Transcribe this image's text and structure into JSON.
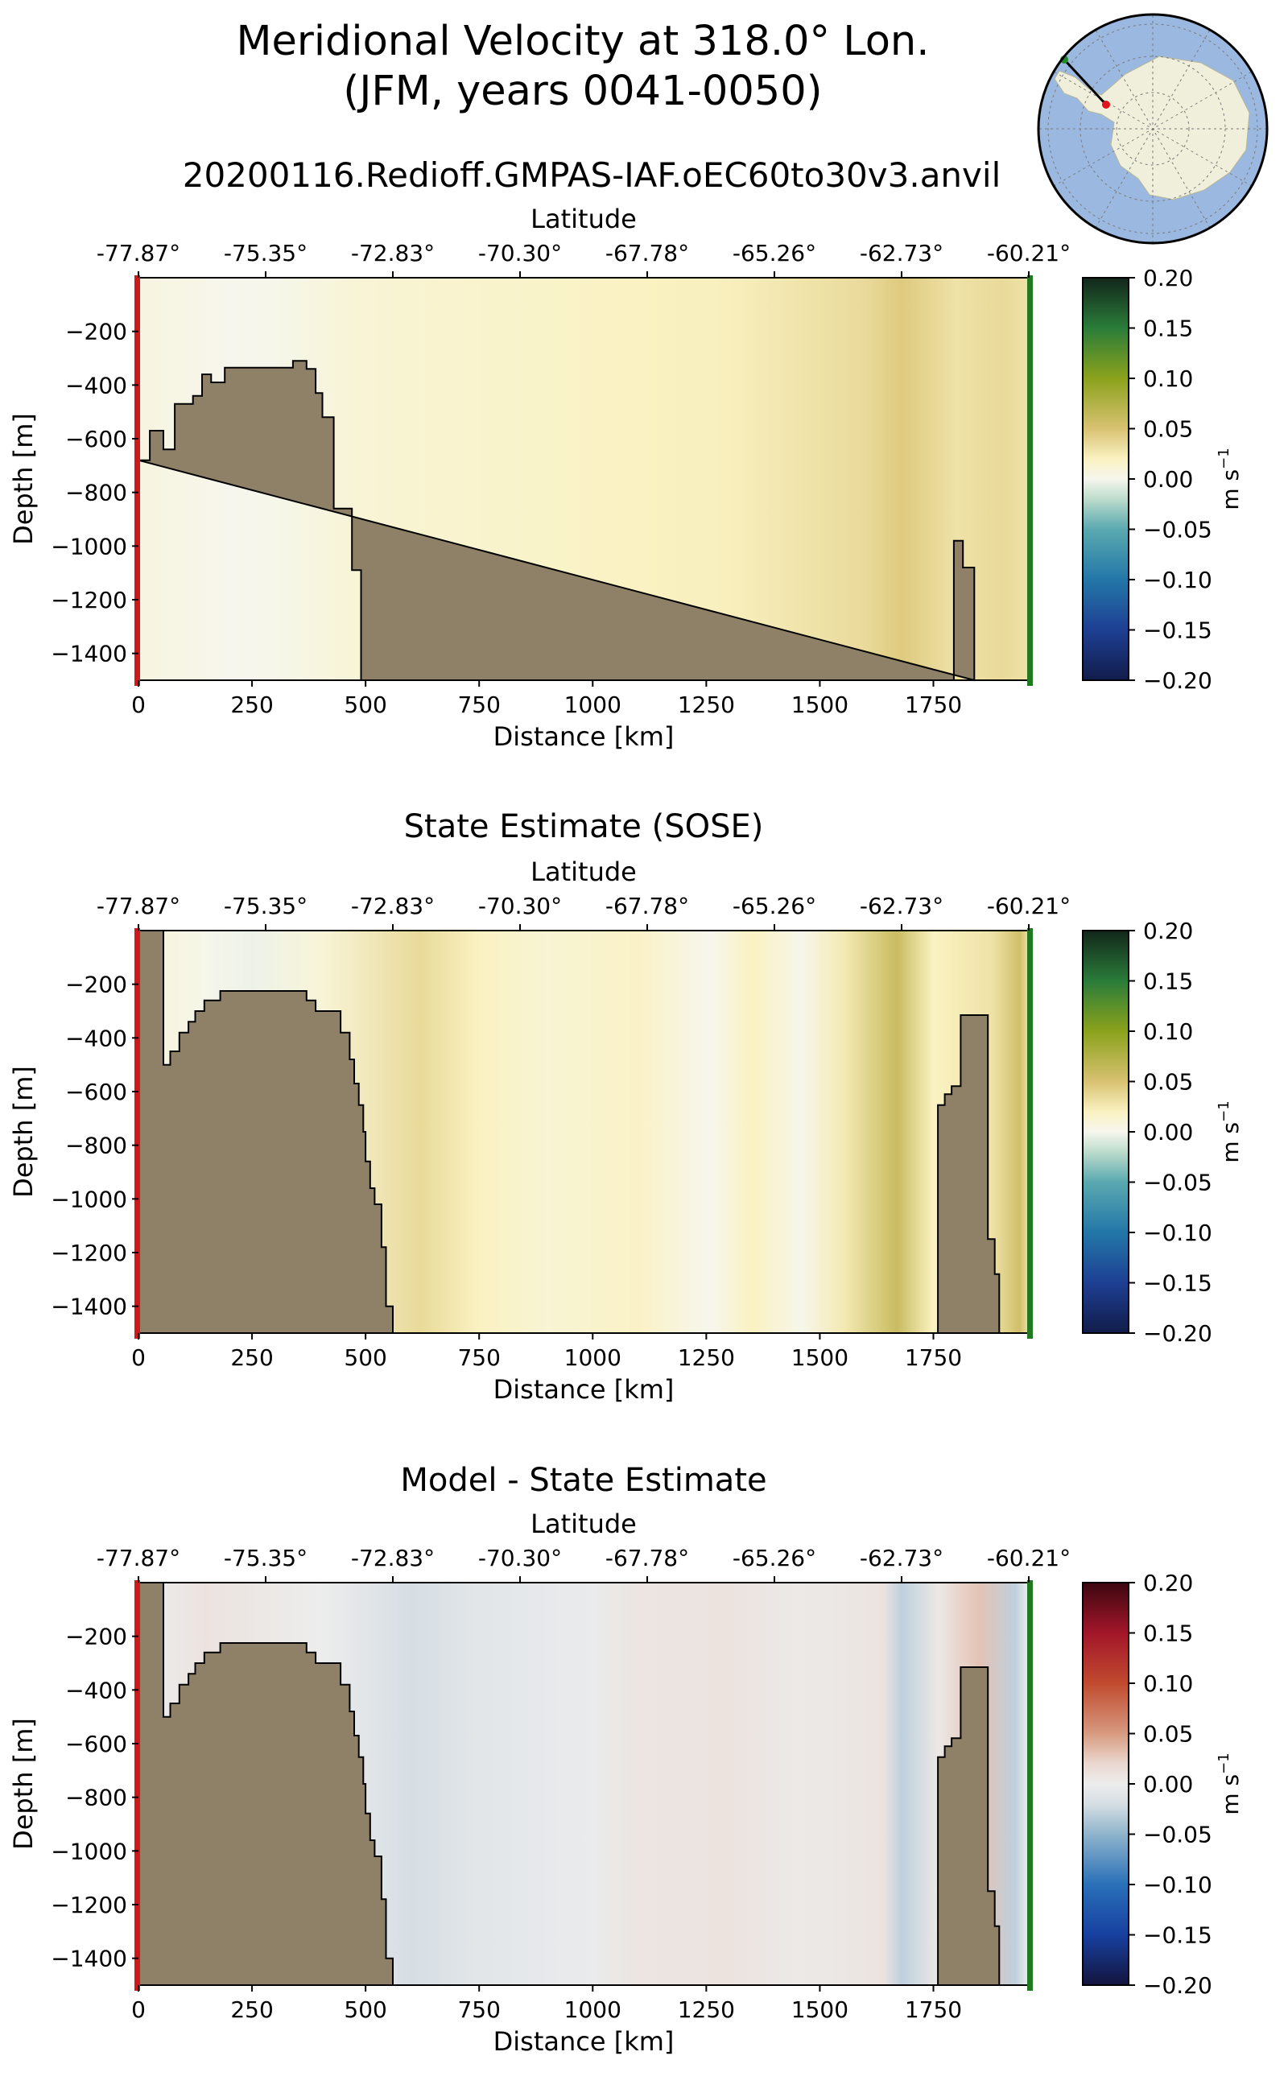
{
  "figure": {
    "title_line1": "Meridional Velocity at 318.0° Lon.",
    "title_line2": "(JFM, years 0041-0050)",
    "run_name": "20200116.Redioff.GMPAS-IAF.oEC60to30v3.anvil",
    "inset_map": {
      "icon": "antarctic-polar-map",
      "ocean_color": "#9bb8e0",
      "land_color": "#efefdc",
      "start_marker_color": "#1f8a2a",
      "end_marker_color": "#e0141c"
    }
  },
  "colors": {
    "land": "#8f8068",
    "left_edge": "#cc1a1a",
    "right_edge": "#1f7a1f"
  },
  "chart_data": [
    {
      "type": "heatmap",
      "title": "",
      "xlabel": "Distance [km]",
      "ylabel": "Depth [m]",
      "top_xlabel": "Latitude",
      "xlim": [
        0,
        1960
      ],
      "ylim": [
        -1500,
        0
      ],
      "x_ticks": [
        0,
        250,
        500,
        750,
        1000,
        1250,
        1500,
        1750
      ],
      "y_ticks": [
        -200,
        -400,
        -600,
        -800,
        -1000,
        -1200,
        -1400
      ],
      "latitude_ticks": [
        "-77.87°",
        "-75.35°",
        "-72.83°",
        "-70.30°",
        "-67.78°",
        "-65.26°",
        "-62.73°",
        "-60.21°"
      ],
      "colorbar": {
        "label": "m s",
        "label_sup": "−1",
        "colormap": "velocity-yellow-green",
        "range": [
          -0.2,
          0.2
        ],
        "ticks": [
          "0.20",
          "0.15",
          "0.10",
          "0.05",
          "0.00",
          "−0.05",
          "−0.10",
          "−0.15",
          "−0.20"
        ]
      },
      "field_profile": [
        [
          0,
          0.006
        ],
        [
          120,
          0.004
        ],
        [
          200,
          0.0
        ],
        [
          300,
          0.002
        ],
        [
          500,
          0.012
        ],
        [
          700,
          0.014
        ],
        [
          900,
          0.017
        ],
        [
          1100,
          0.02
        ],
        [
          1300,
          0.022
        ],
        [
          1450,
          0.028
        ],
        [
          1600,
          0.035
        ],
        [
          1680,
          0.045
        ],
        [
          1800,
          0.03
        ],
        [
          1900,
          0.035
        ],
        [
          1960,
          0.03
        ]
      ],
      "bathymetry": [
        [
          0,
          -680
        ],
        [
          25,
          -680
        ],
        [
          25,
          -570
        ],
        [
          55,
          -570
        ],
        [
          55,
          -640
        ],
        [
          80,
          -640
        ],
        [
          80,
          -470
        ],
        [
          120,
          -470
        ],
        [
          120,
          -440
        ],
        [
          140,
          -440
        ],
        [
          140,
          -360
        ],
        [
          160,
          -360
        ],
        [
          160,
          -390
        ],
        [
          190,
          -390
        ],
        [
          190,
          -335
        ],
        [
          340,
          -335
        ],
        [
          340,
          -310
        ],
        [
          370,
          -310
        ],
        [
          370,
          -340
        ],
        [
          390,
          -340
        ],
        [
          390,
          -430
        ],
        [
          405,
          -430
        ],
        [
          405,
          -520
        ],
        [
          430,
          -520
        ],
        [
          430,
          -860
        ],
        [
          470,
          -860
        ],
        [
          470,
          -1090
        ],
        [
          490,
          -1090
        ],
        [
          490,
          -1500
        ],
        [
          1795,
          -1500
        ],
        [
          1795,
          -980
        ],
        [
          1815,
          -980
        ],
        [
          1815,
          -1080
        ],
        [
          1840,
          -1080
        ],
        [
          1840,
          -1500
        ]
      ]
    },
    {
      "type": "heatmap",
      "title": "State Estimate (SOSE)",
      "xlabel": "Distance [km]",
      "ylabel": "Depth [m]",
      "top_xlabel": "Latitude",
      "xlim": [
        0,
        1960
      ],
      "ylim": [
        -1500,
        0
      ],
      "x_ticks": [
        0,
        250,
        500,
        750,
        1000,
        1250,
        1500,
        1750
      ],
      "y_ticks": [
        -200,
        -400,
        -600,
        -800,
        -1000,
        -1200,
        -1400
      ],
      "latitude_ticks": [
        "-77.87°",
        "-75.35°",
        "-72.83°",
        "-70.30°",
        "-67.78°",
        "-65.26°",
        "-62.73°",
        "-60.21°"
      ],
      "colorbar": {
        "label": "m s",
        "label_sup": "−1",
        "colormap": "velocity-yellow-green",
        "range": [
          -0.2,
          0.2
        ],
        "ticks": [
          "0.20",
          "0.15",
          "0.10",
          "0.05",
          "0.00",
          "−0.05",
          "−0.10",
          "−0.15",
          "−0.20"
        ]
      },
      "field_profile": [
        [
          0,
          0.01
        ],
        [
          150,
          0.002
        ],
        [
          250,
          -0.003
        ],
        [
          400,
          0.01
        ],
        [
          620,
          0.035
        ],
        [
          750,
          0.02
        ],
        [
          900,
          0.012
        ],
        [
          1100,
          0.018
        ],
        [
          1260,
          0.0
        ],
        [
          1350,
          0.02
        ],
        [
          1460,
          0.002
        ],
        [
          1550,
          0.025
        ],
        [
          1670,
          0.06
        ],
        [
          1750,
          0.02
        ],
        [
          1880,
          0.03
        ],
        [
          1940,
          0.055
        ],
        [
          1960,
          0.03
        ]
      ],
      "bathymetry": [
        [
          0,
          -1500
        ],
        [
          0,
          0
        ],
        [
          55,
          0
        ],
        [
          55,
          -500
        ],
        [
          70,
          -500
        ],
        [
          70,
          -450
        ],
        [
          90,
          -450
        ],
        [
          90,
          -380
        ],
        [
          110,
          -380
        ],
        [
          110,
          -340
        ],
        [
          125,
          -340
        ],
        [
          125,
          -300
        ],
        [
          145,
          -300
        ],
        [
          145,
          -260
        ],
        [
          180,
          -260
        ],
        [
          180,
          -225
        ],
        [
          370,
          -225
        ],
        [
          370,
          -260
        ],
        [
          390,
          -260
        ],
        [
          390,
          -300
        ],
        [
          445,
          -300
        ],
        [
          445,
          -380
        ],
        [
          465,
          -380
        ],
        [
          465,
          -480
        ],
        [
          475,
          -480
        ],
        [
          475,
          -570
        ],
        [
          485,
          -570
        ],
        [
          485,
          -650
        ],
        [
          495,
          -650
        ],
        [
          495,
          -750
        ],
        [
          500,
          -750
        ],
        [
          500,
          -860
        ],
        [
          510,
          -860
        ],
        [
          510,
          -960
        ],
        [
          520,
          -960
        ],
        [
          520,
          -1020
        ],
        [
          535,
          -1020
        ],
        [
          535,
          -1180
        ],
        [
          545,
          -1180
        ],
        [
          545,
          -1400
        ],
        [
          560,
          -1400
        ],
        [
          560,
          -1500
        ],
        [
          1760,
          -1500
        ],
        [
          1760,
          -650
        ],
        [
          1775,
          -650
        ],
        [
          1775,
          -610
        ],
        [
          1790,
          -610
        ],
        [
          1790,
          -580
        ],
        [
          1810,
          -580
        ],
        [
          1810,
          -315
        ],
        [
          1870,
          -315
        ],
        [
          1870,
          -1150
        ],
        [
          1885,
          -1150
        ],
        [
          1885,
          -1280
        ],
        [
          1895,
          -1280
        ],
        [
          1895,
          -1500
        ]
      ]
    },
    {
      "type": "heatmap",
      "title": "Model - State Estimate",
      "xlabel": "Distance [km]",
      "ylabel": "Depth [m]",
      "top_xlabel": "Latitude",
      "xlim": [
        0,
        1960
      ],
      "ylim": [
        -1500,
        0
      ],
      "x_ticks": [
        0,
        250,
        500,
        750,
        1000,
        1250,
        1500,
        1750
      ],
      "y_ticks": [
        -200,
        -400,
        -600,
        -800,
        -1000,
        -1200,
        -1400
      ],
      "latitude_ticks": [
        "-77.87°",
        "-75.35°",
        "-72.83°",
        "-70.30°",
        "-67.78°",
        "-65.26°",
        "-62.73°",
        "-60.21°"
      ],
      "colorbar": {
        "label": "m s",
        "label_sup": "−1",
        "colormap": "velocity-red-blue",
        "range": [
          -0.2,
          0.2
        ],
        "ticks": [
          "0.20",
          "0.15",
          "0.10",
          "0.05",
          "0.00",
          "−0.05",
          "−0.10",
          "−0.15",
          "−0.20"
        ]
      },
      "field_profile": [
        [
          0,
          0.0
        ],
        [
          150,
          0.01
        ],
        [
          250,
          0.006
        ],
        [
          400,
          0.0
        ],
        [
          600,
          -0.02
        ],
        [
          750,
          -0.01
        ],
        [
          1000,
          -0.003
        ],
        [
          1100,
          0.008
        ],
        [
          1300,
          0.01
        ],
        [
          1450,
          0.004
        ],
        [
          1550,
          0.006
        ],
        [
          1640,
          0.01
        ],
        [
          1680,
          -0.03
        ],
        [
          1760,
          0.005
        ],
        [
          1850,
          0.03
        ],
        [
          1930,
          -0.03
        ],
        [
          1960,
          0.0
        ]
      ],
      "bathymetry": [
        [
          0,
          -1500
        ],
        [
          0,
          0
        ],
        [
          55,
          0
        ],
        [
          55,
          -500
        ],
        [
          70,
          -500
        ],
        [
          70,
          -450
        ],
        [
          90,
          -450
        ],
        [
          90,
          -380
        ],
        [
          110,
          -380
        ],
        [
          110,
          -340
        ],
        [
          125,
          -340
        ],
        [
          125,
          -300
        ],
        [
          145,
          -300
        ],
        [
          145,
          -260
        ],
        [
          180,
          -260
        ],
        [
          180,
          -225
        ],
        [
          370,
          -225
        ],
        [
          370,
          -260
        ],
        [
          390,
          -260
        ],
        [
          390,
          -300
        ],
        [
          445,
          -300
        ],
        [
          445,
          -380
        ],
        [
          465,
          -380
        ],
        [
          465,
          -480
        ],
        [
          475,
          -480
        ],
        [
          475,
          -570
        ],
        [
          485,
          -570
        ],
        [
          485,
          -650
        ],
        [
          495,
          -650
        ],
        [
          495,
          -750
        ],
        [
          500,
          -750
        ],
        [
          500,
          -860
        ],
        [
          510,
          -860
        ],
        [
          510,
          -960
        ],
        [
          520,
          -960
        ],
        [
          520,
          -1020
        ],
        [
          535,
          -1020
        ],
        [
          535,
          -1180
        ],
        [
          545,
          -1180
        ],
        [
          545,
          -1400
        ],
        [
          560,
          -1400
        ],
        [
          560,
          -1500
        ],
        [
          1760,
          -1500
        ],
        [
          1760,
          -650
        ],
        [
          1775,
          -650
        ],
        [
          1775,
          -610
        ],
        [
          1790,
          -610
        ],
        [
          1790,
          -580
        ],
        [
          1810,
          -580
        ],
        [
          1810,
          -315
        ],
        [
          1870,
          -315
        ],
        [
          1870,
          -1150
        ],
        [
          1885,
          -1150
        ],
        [
          1885,
          -1280
        ],
        [
          1895,
          -1280
        ],
        [
          1895,
          -1500
        ]
      ]
    }
  ]
}
